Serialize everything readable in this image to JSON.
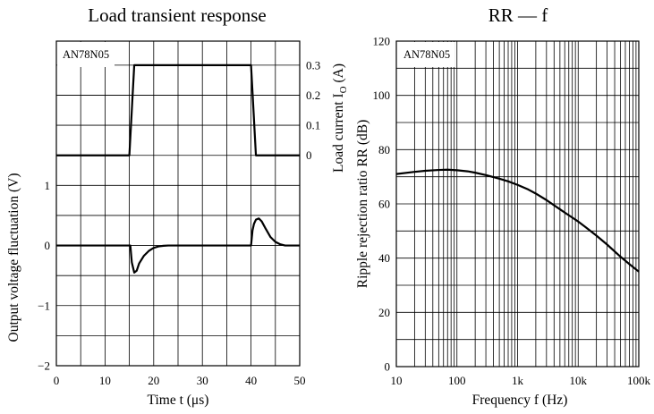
{
  "chart_data": [
    {
      "type": "line",
      "title": "Load transient response",
      "label": "AN78N05",
      "xlabel": "Time  t  (μs)",
      "ylabel_left": "Output voltage fluctuation  (V)",
      "ylabel_right": "Load current  I",
      "ylabel_right_sub": "O",
      "ylabel_right_unit": "  (A)",
      "xlim": [
        0,
        50
      ],
      "ylim_left": [
        -2,
        3.4
      ],
      "x_ticks": [
        0,
        10,
        20,
        30,
        40,
        50
      ],
      "x_tick_labels": [
        "0",
        "10",
        "20",
        "30",
        "40",
        "50"
      ],
      "y_left_ticks": [
        -2,
        -1,
        0,
        1
      ],
      "y_left_tick_labels": [
        "−2",
        "−1",
        "0",
        "1"
      ],
      "y_right_ticks": [
        0,
        0.1,
        0.2,
        0.3
      ],
      "y_right_tick_labels": [
        "0",
        "0.1",
        "0.2",
        "0.3"
      ],
      "y_right_offset": 1.5,
      "y_right_scale": 0.2,
      "grid": true,
      "series": [
        {
          "axis": "right",
          "x": [
            0,
            15,
            16,
            40,
            41,
            50
          ],
          "y": [
            0,
            0,
            0.3,
            0.3,
            0,
            0
          ]
        },
        {
          "axis": "left",
          "x": [
            0,
            15.2,
            15.5,
            16.0,
            16.5,
            17.0,
            18.0,
            19.0,
            20.0,
            21.0,
            22.0,
            23.0,
            24.0,
            40.0,
            40.3,
            40.6,
            41.0,
            41.6,
            42.2,
            43.0,
            44.0,
            45.0,
            46.0,
            47.0,
            50.0
          ],
          "y": [
            0,
            0,
            -0.28,
            -0.45,
            -0.42,
            -0.3,
            -0.17,
            -0.09,
            -0.04,
            -0.015,
            -0.005,
            0,
            0,
            0,
            0.25,
            0.36,
            0.43,
            0.45,
            0.4,
            0.28,
            0.14,
            0.06,
            0.02,
            0,
            0
          ]
        }
      ]
    },
    {
      "type": "line",
      "title": "RR — f",
      "label": "AN78N05",
      "xlabel": "Frequency  f  (Hz)",
      "ylabel": "Ripple rejection ratio  RR  (dB)",
      "xscale": "log",
      "xlim": [
        10,
        100000
      ],
      "ylim": [
        0,
        120
      ],
      "x_ticks": [
        10,
        100,
        1000,
        10000,
        100000
      ],
      "x_tick_labels": [
        "10",
        "100",
        "1k",
        "10k",
        "100k"
      ],
      "y_ticks": [
        0,
        20,
        40,
        60,
        80,
        100,
        120
      ],
      "y_tick_labels": [
        "0",
        "20",
        "40",
        "60",
        "80",
        "100",
        "120"
      ],
      "grid": true,
      "series": [
        {
          "x": [
            10,
            20,
            30,
            50,
            70,
            100,
            150,
            200,
            300,
            500,
            700,
            1000,
            1500,
            2000,
            3000,
            5000,
            7000,
            10000,
            15000,
            20000,
            30000,
            50000,
            70000,
            100000
          ],
          "y": [
            71,
            71.8,
            72.2,
            72.5,
            72.6,
            72.4,
            72,
            71.5,
            70.6,
            69.3,
            68.3,
            67,
            65.3,
            63.8,
            61.4,
            58,
            55.8,
            53.5,
            50.5,
            48.3,
            45,
            40.5,
            37.8,
            35
          ]
        }
      ]
    }
  ]
}
